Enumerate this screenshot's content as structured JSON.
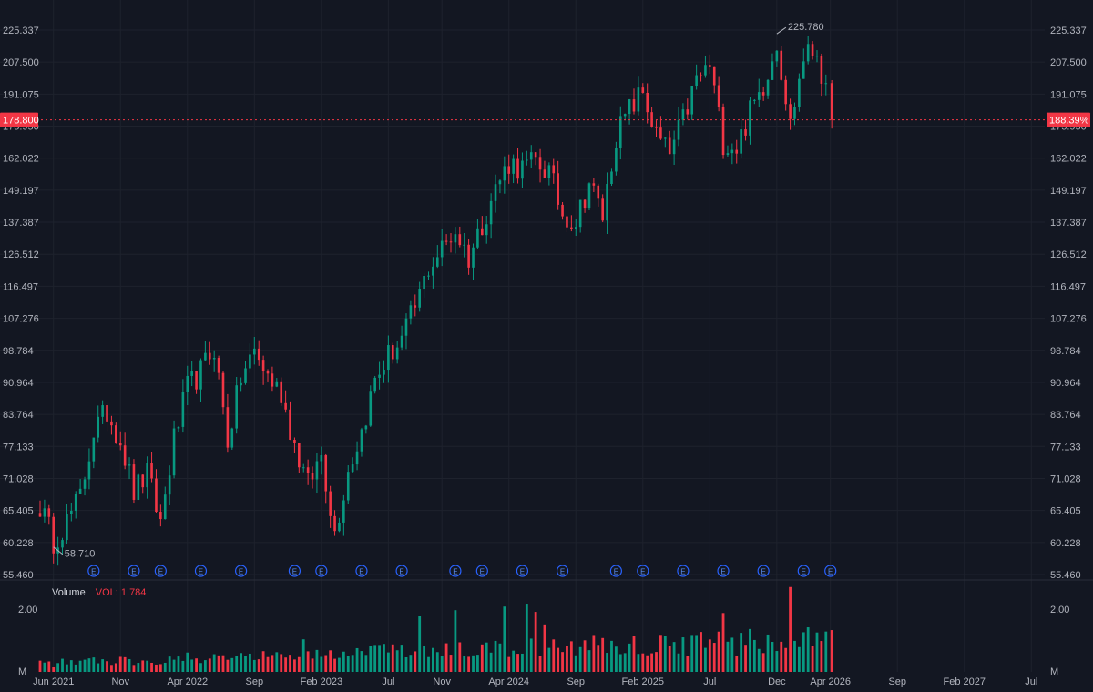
{
  "chart_data": {
    "type": "candlestick",
    "price_scale": "log",
    "price_axis_labels": [
      "225.337",
      "207.500",
      "191.075",
      "175.950",
      "162.022",
      "149.197",
      "137.387",
      "126.512",
      "116.497",
      "107.276",
      "98.784",
      "90.964",
      "83.764",
      "77.133",
      "71.028",
      "65.405",
      "60.228",
      "55.460"
    ],
    "price_axis_values": [
      225.337,
      207.5,
      191.075,
      175.95,
      162.022,
      149.197,
      137.387,
      126.512,
      116.497,
      107.276,
      98.784,
      90.964,
      83.764,
      77.133,
      71.028,
      65.405,
      60.228,
      55.46
    ],
    "time_axis_labels": [
      "Jun 2021",
      "Nov",
      "Apr 2022",
      "Sep",
      "Feb 2023",
      "Jul",
      "Nov",
      "Apr 2024",
      "Sep",
      "Feb 2025",
      "Jul",
      "Dec",
      "Apr 2026",
      "Sep",
      "Feb 2027",
      "Jul"
    ],
    "time_axis_dates": [
      "2021-06",
      "2021-11",
      "2022-04",
      "2022-09",
      "2023-02",
      "2023-07",
      "2023-11",
      "2024-04",
      "2024-09",
      "2025-02",
      "2025-07",
      "2025-12",
      "2026-04",
      "2026-09",
      "2027-02",
      "2027-07"
    ],
    "x_range": [
      "2021-05",
      "2027-08"
    ],
    "last_date": "2026-04",
    "high_marker": {
      "value": 225.78,
      "label": "225.780",
      "date": "2025-12"
    },
    "low_marker": {
      "value": 58.71,
      "label": "58.710",
      "date": "2021-06"
    },
    "current_price": {
      "value": 178.8,
      "label": "178.800"
    },
    "current_percent_label": "188.39%",
    "close_anchors": [
      [
        "2021-05",
        66.2
      ],
      [
        "2021-06",
        60.5
      ],
      [
        "2021-07",
        63.6
      ],
      [
        "2021-08",
        67.8
      ],
      [
        "2021-09",
        80.2
      ],
      [
        "2021-10",
        84.3
      ],
      [
        "2021-11",
        78.6
      ],
      [
        "2021-12",
        68.6
      ],
      [
        "2022-01",
        71.8
      ],
      [
        "2022-02",
        63.4
      ],
      [
        "2022-03",
        78.5
      ],
      [
        "2022-04",
        89.6
      ],
      [
        "2022-05",
        93.5
      ],
      [
        "2022-06",
        99.6
      ],
      [
        "2022-07",
        78.3
      ],
      [
        "2022-08",
        92.0
      ],
      [
        "2022-09",
        98.5
      ],
      [
        "2022-10",
        92.4
      ],
      [
        "2022-11",
        88.5
      ],
      [
        "2022-12",
        77.4
      ],
      [
        "2023-01",
        69.8
      ],
      [
        "2023-02",
        75.6
      ],
      [
        "2023-03",
        61.8
      ],
      [
        "2023-04",
        72.6
      ],
      [
        "2023-05",
        80.2
      ],
      [
        "2023-06",
        91.5
      ],
      [
        "2023-07",
        97.4
      ],
      [
        "2023-08",
        101.6
      ],
      [
        "2023-09",
        110.2
      ],
      [
        "2023-10",
        122.2
      ],
      [
        "2023-11",
        128.3
      ],
      [
        "2023-12",
        134.5
      ],
      [
        "2024-01",
        125.4
      ],
      [
        "2024-02",
        137.2
      ],
      [
        "2024-03",
        150.1
      ],
      [
        "2024-04",
        160.3
      ],
      [
        "2024-05",
        157.8
      ],
      [
        "2024-06",
        160.6
      ],
      [
        "2024-07",
        156.2
      ],
      [
        "2024-08",
        140.3
      ],
      [
        "2024-09",
        137.9
      ],
      [
        "2024-10",
        152.4
      ],
      [
        "2024-11",
        139.5
      ],
      [
        "2024-12",
        171.8
      ],
      [
        "2025-01",
        183.5
      ],
      [
        "2025-02",
        192.1
      ],
      [
        "2025-03",
        171.4
      ],
      [
        "2025-04",
        163.5
      ],
      [
        "2025-05",
        178.6
      ],
      [
        "2025-06",
        198.2
      ],
      [
        "2025-07",
        205.4
      ],
      [
        "2025-08",
        169.2
      ],
      [
        "2025-09",
        166.7
      ],
      [
        "2025-10",
        182.3
      ],
      [
        "2025-11",
        196.1
      ],
      [
        "2025-12",
        218.8
      ],
      [
        "2026-01",
        176.4
      ],
      [
        "2026-02",
        210.4
      ],
      [
        "2026-03",
        214.2
      ],
      [
        "2026-04",
        178.8
      ]
    ],
    "earnings_dates": [
      "2021-09",
      "2021-12",
      "2022-02",
      "2022-05",
      "2022-08",
      "2022-12",
      "2023-02",
      "2023-05",
      "2023-08",
      "2023-12",
      "2024-02",
      "2024-05",
      "2024-08",
      "2024-12",
      "2025-02",
      "2025-05",
      "2025-08",
      "2025-11",
      "2026-02",
      "2026-04"
    ],
    "earnings_label": "E",
    "volume": {
      "legend_label": "Volume",
      "legend_value": "VOL: 1.784",
      "axis_labels": [
        "2.00",
        "M"
      ],
      "axis_values": [
        2.0,
        0
      ],
      "unit": "M",
      "max": 2.85
    },
    "colors": {
      "up": "#089981",
      "down": "#f23645",
      "background": "#131722",
      "grid": "#1e222d",
      "text": "#b2b5be",
      "marker": "#2962ff"
    }
  }
}
